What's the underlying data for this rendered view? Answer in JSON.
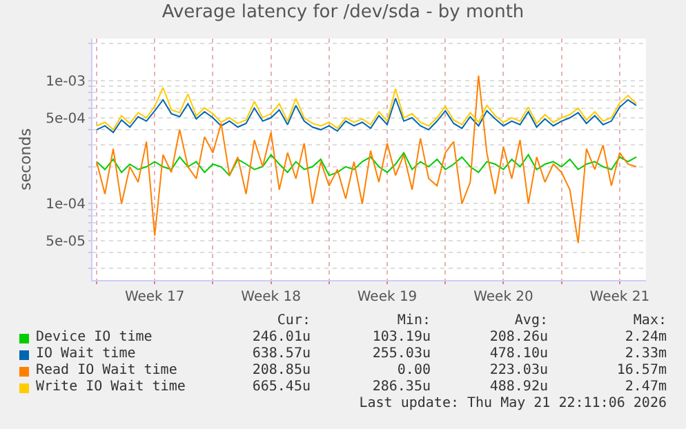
{
  "chart_data": {
    "type": "line",
    "title": "Average latency for /dev/sda - by month",
    "ylabel": "seconds",
    "log": true,
    "grid": true,
    "legend": "bottom",
    "x": [
      "2026-04-19T00:00",
      "2026-04-19T12:00",
      "2026-04-20T00:00",
      "2026-04-20T12:00",
      "2026-04-21T00:00",
      "2026-04-21T12:00",
      "2026-04-22T00:00",
      "2026-04-22T12:00",
      "2026-04-23T00:00",
      "2026-04-23T12:00",
      "2026-04-24T00:00",
      "2026-04-24T12:00",
      "2026-04-25T00:00",
      "2026-04-25T12:00",
      "2026-04-26T00:00",
      "2026-04-26T12:00",
      "2026-04-27T00:00",
      "2026-04-27T12:00",
      "2026-04-28T00:00",
      "2026-04-28T12:00",
      "2026-04-29T00:00",
      "2026-04-29T12:00",
      "2026-04-30T00:00",
      "2026-04-30T12:00",
      "2026-05-01T00:00",
      "2026-05-01T12:00",
      "2026-05-02T00:00",
      "2026-05-02T12:00",
      "2026-05-03T00:00",
      "2026-05-03T12:00",
      "2026-05-04T00:00",
      "2026-05-04T12:00",
      "2026-05-05T00:00",
      "2026-05-05T12:00",
      "2026-05-06T00:00",
      "2026-05-06T12:00",
      "2026-05-07T00:00",
      "2026-05-07T12:00",
      "2026-05-08T00:00",
      "2026-05-08T12:00",
      "2026-05-09T00:00",
      "2026-05-09T12:00",
      "2026-05-10T00:00",
      "2026-05-10T12:00",
      "2026-05-11T00:00",
      "2026-05-11T12:00",
      "2026-05-12T00:00",
      "2026-05-12T12:00",
      "2026-05-13T00:00",
      "2026-05-13T12:00",
      "2026-05-14T00:00",
      "2026-05-14T12:00",
      "2026-05-15T00:00",
      "2026-05-15T12:00",
      "2026-05-16T00:00",
      "2026-05-16T12:00",
      "2026-05-17T00:00",
      "2026-05-17T12:00",
      "2026-05-18T00:00",
      "2026-05-18T12:00",
      "2026-05-19T00:00",
      "2026-05-19T12:00",
      "2026-05-20T00:00",
      "2026-05-20T12:00",
      "2026-05-21T00:00",
      "2026-05-21T12:00"
    ],
    "xlim": [
      "2026-04-18T18:00",
      "2026-05-22T02:00"
    ],
    "xticks": [
      {
        "value": "2026-04-19",
        "label": null
      },
      {
        "value": "2026-04-22T12:00",
        "label": "Week 17"
      },
      {
        "value": "2026-04-26",
        "label": null
      },
      {
        "value": "2026-04-29T12:00",
        "label": "Week 18"
      },
      {
        "value": "2026-05-03",
        "label": null
      },
      {
        "value": "2026-05-06T12:00",
        "label": "Week 19"
      },
      {
        "value": "2026-05-10",
        "label": null
      },
      {
        "value": "2026-05-13T12:00",
        "label": "Week 20"
      },
      {
        "value": "2026-05-17",
        "label": null
      },
      {
        "value": "2026-05-20T12:00",
        "label": "Week 21"
      }
    ],
    "ylim": [
      2.4e-05,
      0.0022
    ],
    "yticks": [
      {
        "value": 3e-05,
        "label": null
      },
      {
        "value": 4e-05,
        "label": null
      },
      {
        "value": 5e-05,
        "label": "5e-05"
      },
      {
        "value": 6e-05,
        "label": null
      },
      {
        "value": 7e-05,
        "label": null
      },
      {
        "value": 8e-05,
        "label": null
      },
      {
        "value": 9e-05,
        "label": null
      },
      {
        "value": 0.0001,
        "label": "1e-04"
      },
      {
        "value": 0.0002,
        "label": null
      },
      {
        "value": 0.0003,
        "label": null
      },
      {
        "value": 0.0004,
        "label": null
      },
      {
        "value": 0.0005,
        "label": "5e-04"
      },
      {
        "value": 0.0006,
        "label": null
      },
      {
        "value": 0.0007,
        "label": null
      },
      {
        "value": 0.0008,
        "label": null
      },
      {
        "value": 0.0009,
        "label": null
      },
      {
        "value": 0.001,
        "label": "1e-03"
      },
      {
        "value": 0.002,
        "label": null
      }
    ],
    "series": [
      {
        "name": "Device IO time",
        "color": "#00cc00",
        "values": [
          0.00022,
          0.00019,
          0.00023,
          0.00018,
          0.00021,
          0.00019,
          0.0002,
          0.00022,
          0.0002,
          0.00019,
          0.00024,
          0.0002,
          0.00022,
          0.00018,
          0.00021,
          0.0002,
          0.00017,
          0.00023,
          0.00021,
          0.00019,
          0.0002,
          0.00025,
          0.00021,
          0.00018,
          0.00022,
          0.00019,
          0.0002,
          0.00023,
          0.00017,
          0.00018,
          0.0002,
          0.00019,
          0.00022,
          0.00024,
          0.0002,
          0.00018,
          0.00021,
          0.00026,
          0.00019,
          0.00022,
          0.0002,
          0.00023,
          0.00019,
          0.00021,
          0.00024,
          0.0002,
          0.00018,
          0.00022,
          0.00021,
          0.00019,
          0.00023,
          0.0002,
          0.00025,
          0.00019,
          0.00021,
          0.00022,
          0.0002,
          0.00023,
          0.00019,
          0.00021,
          0.00022,
          0.0002,
          0.00019,
          0.00024,
          0.00022,
          0.00024
        ]
      },
      {
        "name": "IO Wait time",
        "color": "#0066b3",
        "values": [
          0.0004,
          0.00043,
          0.00038,
          0.00048,
          0.00042,
          0.00051,
          0.00047,
          0.00057,
          0.0007,
          0.00054,
          0.00051,
          0.00065,
          0.00049,
          0.00056,
          0.0005,
          0.00043,
          0.00047,
          0.00042,
          0.00045,
          0.0006,
          0.00047,
          0.0005,
          0.00058,
          0.00044,
          0.00063,
          0.00047,
          0.00042,
          0.0004,
          0.00043,
          0.00039,
          0.00047,
          0.00043,
          0.00046,
          0.00041,
          0.00052,
          0.00044,
          0.00072,
          0.00047,
          0.0005,
          0.00043,
          0.0004,
          0.00047,
          0.00057,
          0.00045,
          0.00041,
          0.00051,
          0.00043,
          0.00057,
          0.00049,
          0.00043,
          0.00047,
          0.00044,
          0.00056,
          0.00042,
          0.00049,
          0.00043,
          0.00047,
          0.0005,
          0.00055,
          0.00045,
          0.00052,
          0.00044,
          0.00047,
          0.00061,
          0.0007,
          0.00063
        ]
      },
      {
        "name": "Read IO Wait time",
        "color": "#ff8000",
        "values": [
          0.00022,
          0.00012,
          0.00028,
          0.0001,
          0.0002,
          0.00015,
          0.00032,
          5.5e-05,
          0.00025,
          0.00018,
          0.0004,
          0.0002,
          0.00016,
          0.00035,
          0.00026,
          0.00045,
          0.00017,
          0.00024,
          0.00012,
          0.00033,
          0.0002,
          0.00038,
          0.00013,
          0.00026,
          0.00016,
          0.00031,
          0.0001,
          0.00022,
          0.00014,
          0.00019,
          0.00011,
          0.00022,
          0.0001,
          0.00027,
          0.00015,
          0.00031,
          0.00017,
          0.00025,
          0.00013,
          0.00034,
          0.00016,
          0.00014,
          0.00026,
          0.00032,
          0.0001,
          0.00015,
          0.0011,
          0.00026,
          0.00012,
          0.00029,
          0.00016,
          0.00033,
          0.0001,
          0.00024,
          0.00015,
          0.00021,
          0.00018,
          0.00013,
          4.8e-05,
          0.00028,
          0.00019,
          0.0003,
          0.00014,
          0.00026,
          0.00021,
          0.0002
        ]
      },
      {
        "name": "Write IO Wait time",
        "color": "#ffcc00",
        "values": [
          0.00043,
          0.00046,
          0.0004,
          0.00052,
          0.00045,
          0.00055,
          0.0005,
          0.00062,
          0.00088,
          0.00058,
          0.00055,
          0.00078,
          0.00052,
          0.0006,
          0.00054,
          0.00046,
          0.0005,
          0.00045,
          0.00048,
          0.00068,
          0.0005,
          0.00054,
          0.00065,
          0.00047,
          0.00072,
          0.0005,
          0.00045,
          0.00043,
          0.00046,
          0.00041,
          0.0005,
          0.00046,
          0.00049,
          0.00044,
          0.00056,
          0.00047,
          0.00086,
          0.0005,
          0.00054,
          0.00046,
          0.00043,
          0.0005,
          0.00062,
          0.00048,
          0.00044,
          0.00055,
          0.00046,
          0.00063,
          0.00052,
          0.00046,
          0.0005,
          0.00047,
          0.00061,
          0.00045,
          0.00053,
          0.00046,
          0.0005,
          0.00053,
          0.0006,
          0.00048,
          0.00056,
          0.00047,
          0.0005,
          0.00066,
          0.00076,
          0.00065
        ]
      }
    ],
    "annotations": [
      "Cur:",
      "Min:",
      "Avg:",
      "Max:",
      "246.01u",
      "103.19u",
      "208.26u",
      "2.24m",
      "638.57u",
      "255.03u",
      "478.10u",
      "2.33m",
      "208.85u",
      "0.00",
      "223.03u",
      "16.57m",
      "665.45u",
      "286.35u",
      "488.92u",
      "2.47m",
      "Last update: Thu May 21 22:11:06 2026"
    ]
  }
}
